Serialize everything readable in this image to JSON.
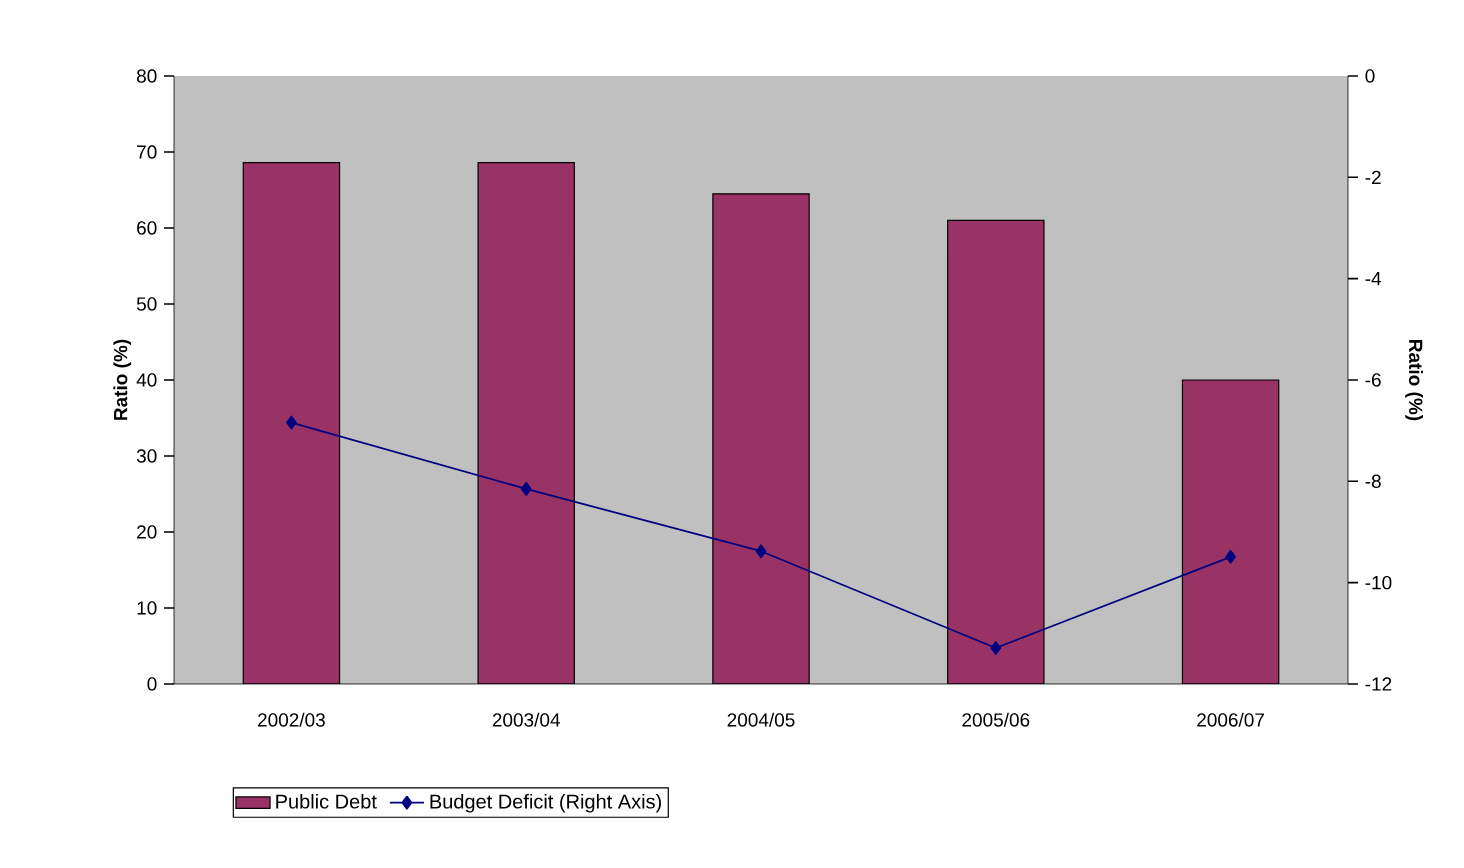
{
  "chart_data": {
    "type": "bar",
    "categories": [
      "2002/03",
      "2003/04",
      "2004/05",
      "2005/06",
      "2006/07"
    ],
    "ylabel": "Ratio (%)",
    "y2label": "Ratio (%)",
    "ylim": [
      0,
      80
    ],
    "yticks": [
      0,
      10,
      20,
      30,
      40,
      50,
      60,
      70,
      80
    ],
    "y2lim": [
      -12,
      0
    ],
    "y2ticks": [
      -12,
      -10,
      -8,
      -6,
      -4,
      -2,
      0
    ],
    "legend": "bottom",
    "marker": "diamond",
    "grid": false,
    "series": [
      {
        "name": "Public Debt",
        "color": "#993366",
        "values": [
          68.6,
          68.6,
          64.5,
          61.0,
          40.0
        ]
      },
      {
        "name": "Budget Deficit (Right Axis)",
        "type": "line",
        "axis": "y2",
        "color": "#000080",
        "values": [
          -6.84,
          -8.15,
          -9.38,
          -11.29,
          -9.49
        ]
      }
    ]
  }
}
